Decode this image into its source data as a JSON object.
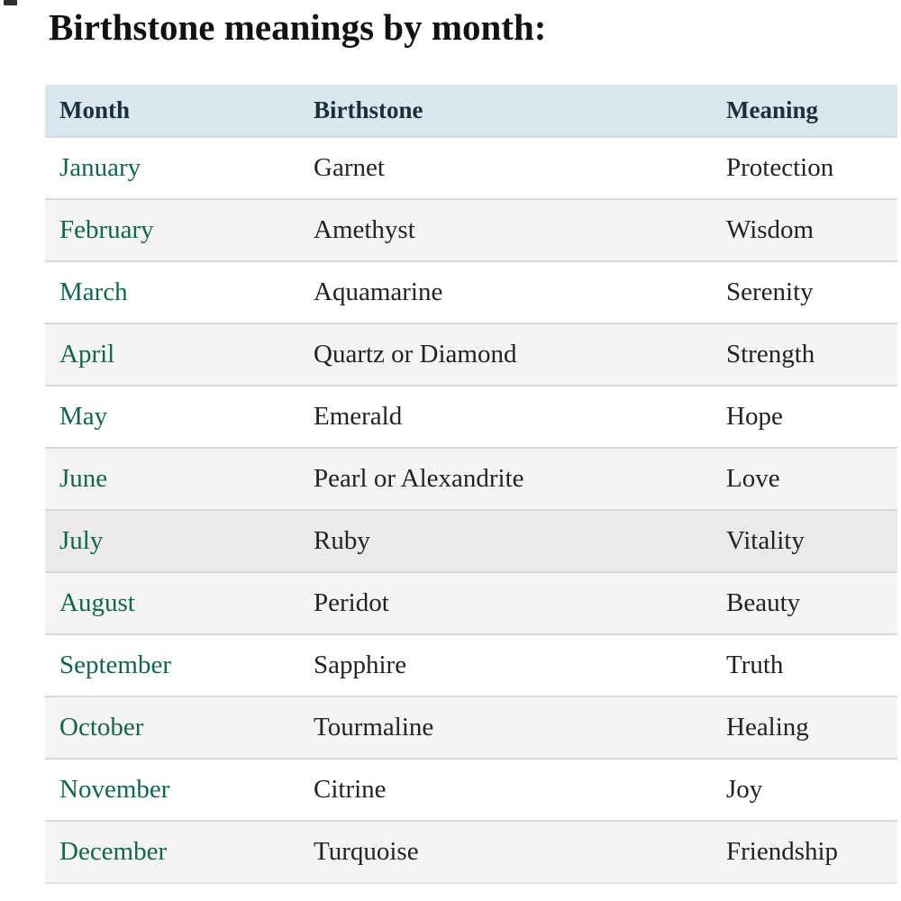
{
  "page": {
    "title": "Birthstone meanings by month:"
  },
  "colors": {
    "header_background": "#d9e7ee",
    "header_text": "#1d2f39",
    "month_link_green": "#12664b",
    "body_text": "#232323",
    "stripe_row": "#f4f4f4",
    "highlighted_row": "#eaeaea",
    "row_separator": "#d8d8d8"
  },
  "table": {
    "headers": {
      "month": "Month",
      "birthstone": "Birthstone",
      "meaning": "Meaning"
    },
    "rows": [
      {
        "month": "January",
        "birthstone": "Garnet",
        "meaning": "Protection"
      },
      {
        "month": "February",
        "birthstone": "Amethyst",
        "meaning": "Wisdom"
      },
      {
        "month": "March",
        "birthstone": "Aquamarine",
        "meaning": "Serenity"
      },
      {
        "month": "April",
        "birthstone": "Quartz or Diamond",
        "meaning": "Strength"
      },
      {
        "month": "May",
        "birthstone": "Emerald",
        "meaning": "Hope"
      },
      {
        "month": "June",
        "birthstone": "Pearl or Alexandrite",
        "meaning": "Love"
      },
      {
        "month": "July",
        "birthstone": "Ruby",
        "meaning": "Vitality"
      },
      {
        "month": "August",
        "birthstone": "Peridot",
        "meaning": "Beauty"
      },
      {
        "month": "September",
        "birthstone": "Sapphire",
        "meaning": "Truth"
      },
      {
        "month": "October",
        "birthstone": "Tourmaline",
        "meaning": "Healing"
      },
      {
        "month": "November",
        "birthstone": "Citrine",
        "meaning": "Joy"
      },
      {
        "month": "December",
        "birthstone": "Turquoise",
        "meaning": "Friendship"
      }
    ]
  }
}
